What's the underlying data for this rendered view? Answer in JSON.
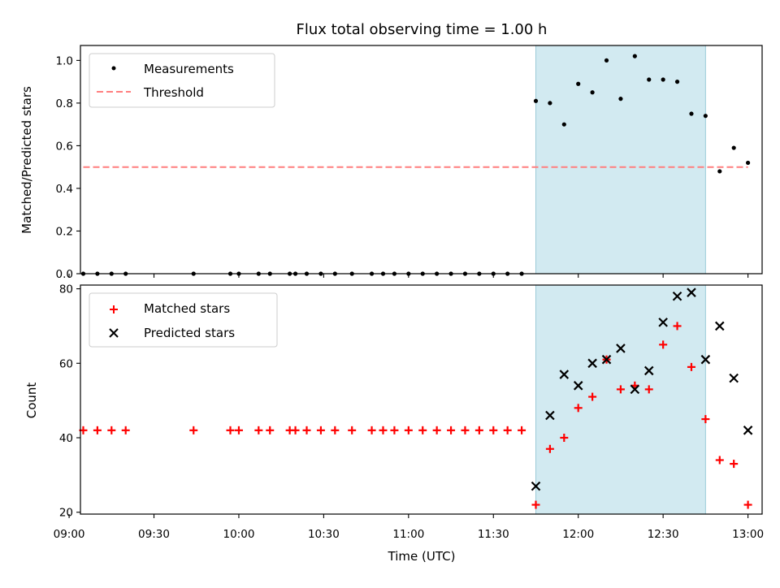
{
  "chart_data": {
    "title": "Flux total observing time = 1.00 h",
    "shaded_region": {
      "start": "11:45",
      "end": "12:45",
      "color": "#add8e6"
    },
    "x": {
      "label": "Time (UTC)",
      "lim": [
        "09:04",
        "13:05"
      ],
      "ticks": [
        "09:00",
        "09:30",
        "10:00",
        "10:30",
        "11:00",
        "11:30",
        "12:00",
        "12:30",
        "13:00"
      ]
    },
    "top": {
      "type": "scatter",
      "ylabel": "Matched/Predicted stars",
      "ylim": [
        0,
        1.07
      ],
      "yticks": [
        "0.0",
        "0.2",
        "0.4",
        "0.6",
        "0.8",
        "1.0"
      ],
      "legend": {
        "position": "upper-left",
        "entries": [
          "Measurements",
          "Threshold"
        ]
      },
      "threshold": {
        "value": 0.5,
        "from": "09:05",
        "to": "13:00",
        "color": "#ff7f7f"
      },
      "series": [
        {
          "name": "Measurements",
          "marker": "dot",
          "color": "#000000",
          "points": [
            [
              "09:05",
              0.0
            ],
            [
              "09:10",
              0.0
            ],
            [
              "09:15",
              0.0
            ],
            [
              "09:20",
              0.0
            ],
            [
              "09:44",
              0.0
            ],
            [
              "09:57",
              0.0
            ],
            [
              "10:00",
              0.0
            ],
            [
              "10:07",
              0.0
            ],
            [
              "10:11",
              0.0
            ],
            [
              "10:18",
              0.0
            ],
            [
              "10:20",
              0.0
            ],
            [
              "10:24",
              0.0
            ],
            [
              "10:29",
              0.0
            ],
            [
              "10:34",
              0.0
            ],
            [
              "10:40",
              0.0
            ],
            [
              "10:47",
              0.0
            ],
            [
              "10:51",
              0.0
            ],
            [
              "10:55",
              0.0
            ],
            [
              "11:00",
              0.0
            ],
            [
              "11:05",
              0.0
            ],
            [
              "11:10",
              0.0
            ],
            [
              "11:15",
              0.0
            ],
            [
              "11:20",
              0.0
            ],
            [
              "11:25",
              0.0
            ],
            [
              "11:30",
              0.0
            ],
            [
              "11:35",
              0.0
            ],
            [
              "11:40",
              0.0
            ],
            [
              "11:45",
              0.81
            ],
            [
              "11:50",
              0.8
            ],
            [
              "11:55",
              0.7
            ],
            [
              "12:00",
              0.89
            ],
            [
              "12:05",
              0.85
            ],
            [
              "12:10",
              1.0
            ],
            [
              "12:15",
              0.82
            ],
            [
              "12:20",
              1.02
            ],
            [
              "12:25",
              0.91
            ],
            [
              "12:30",
              0.91
            ],
            [
              "12:35",
              0.9
            ],
            [
              "12:40",
              0.75
            ],
            [
              "12:45",
              0.74
            ],
            [
              "12:50",
              0.48
            ],
            [
              "12:55",
              0.59
            ],
            [
              "13:00",
              0.52
            ]
          ]
        }
      ]
    },
    "bottom": {
      "type": "scatter",
      "ylabel": "Count",
      "ylim": [
        19.5,
        81
      ],
      "yticks": [
        "20",
        "40",
        "60",
        "80"
      ],
      "legend": {
        "position": "upper-left",
        "entries": [
          "Matched stars",
          "Predicted stars"
        ]
      },
      "series": [
        {
          "name": "Matched stars",
          "marker": "plus",
          "color": "#ff0000",
          "points": [
            [
              "09:05",
              42
            ],
            [
              "09:10",
              42
            ],
            [
              "09:15",
              42
            ],
            [
              "09:20",
              42
            ],
            [
              "09:44",
              42
            ],
            [
              "09:57",
              42
            ],
            [
              "10:00",
              42
            ],
            [
              "10:07",
              42
            ],
            [
              "10:11",
              42
            ],
            [
              "10:18",
              42
            ],
            [
              "10:20",
              42
            ],
            [
              "10:24",
              42
            ],
            [
              "10:29",
              42
            ],
            [
              "10:34",
              42
            ],
            [
              "10:40",
              42
            ],
            [
              "10:47",
              42
            ],
            [
              "10:51",
              42
            ],
            [
              "10:55",
              42
            ],
            [
              "11:00",
              42
            ],
            [
              "11:05",
              42
            ],
            [
              "11:10",
              42
            ],
            [
              "11:15",
              42
            ],
            [
              "11:20",
              42
            ],
            [
              "11:25",
              42
            ],
            [
              "11:30",
              42
            ],
            [
              "11:35",
              42
            ],
            [
              "11:40",
              42
            ],
            [
              "11:45",
              22
            ],
            [
              "11:50",
              37
            ],
            [
              "11:55",
              40
            ],
            [
              "12:00",
              48
            ],
            [
              "12:05",
              51
            ],
            [
              "12:10",
              61
            ],
            [
              "12:15",
              53
            ],
            [
              "12:20",
              54
            ],
            [
              "12:25",
              53
            ],
            [
              "12:30",
              65
            ],
            [
              "12:35",
              70
            ],
            [
              "12:40",
              59
            ],
            [
              "12:45",
              45
            ],
            [
              "12:50",
              34
            ],
            [
              "12:55",
              33
            ],
            [
              "13:00",
              22
            ]
          ]
        },
        {
          "name": "Predicted stars",
          "marker": "x",
          "color": "#000000",
          "points": [
            [
              "11:45",
              27
            ],
            [
              "11:50",
              46
            ],
            [
              "11:55",
              57
            ],
            [
              "12:00",
              54
            ],
            [
              "12:05",
              60
            ],
            [
              "12:10",
              61
            ],
            [
              "12:15",
              64
            ],
            [
              "12:20",
              53
            ],
            [
              "12:25",
              58
            ],
            [
              "12:30",
              71
            ],
            [
              "12:35",
              78
            ],
            [
              "12:40",
              79
            ],
            [
              "12:45",
              61
            ],
            [
              "12:50",
              70
            ],
            [
              "12:55",
              56
            ],
            [
              "13:00",
              42
            ]
          ]
        }
      ]
    }
  }
}
